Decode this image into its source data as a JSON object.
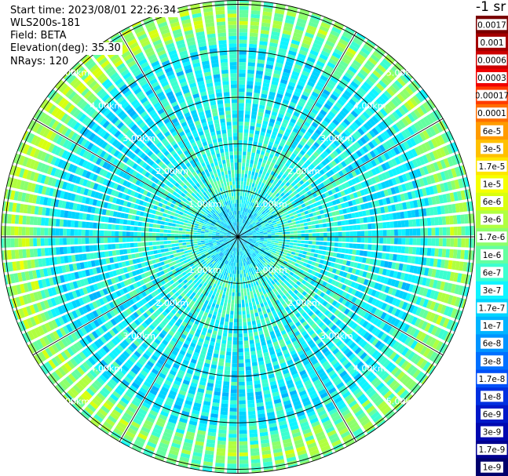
{
  "header": {
    "start_time": "Start time: 2023/08/01 22:26:34",
    "instrument": "WLS200s-181",
    "field": "Field: BETA",
    "elevation": "Elevation(deg): 35.30",
    "nrays": "NRays: 120"
  },
  "colorbar": {
    "title": "-1 sr",
    "labels": [
      "0.0017",
      "0.001",
      "0.0006",
      "0.0003",
      "0.00017",
      "0.0001",
      "6e-5",
      "3e-5",
      "1.7e-5",
      "1e-5",
      "6e-6",
      "3e-6",
      "1.7e-6",
      "1e-6",
      "6e-7",
      "3e-7",
      "1.7e-7",
      "1e-7",
      "6e-8",
      "3e-8",
      "1.7e-8",
      "1e-8",
      "6e-9",
      "3e-9",
      "1.7e-9",
      "1e-9"
    ],
    "colors": [
      "#7a0000",
      "#a40000",
      "#cc0000",
      "#f00000",
      "#ff3b00",
      "#ff6e00",
      "#ff9b00",
      "#ffc000",
      "#ffe600",
      "#f6ff00",
      "#d8ff10",
      "#b0ff40",
      "#8cff6c",
      "#64ffa0",
      "#3cffd0",
      "#10f4ff",
      "#00d4ff",
      "#00b4ff",
      "#0094ff",
      "#0070ff",
      "#0050f8",
      "#0030e0",
      "#0018c8",
      "#0008b0",
      "#000090",
      "#00006c"
    ]
  },
  "chart_data": {
    "type": "heatmap",
    "projection": "polar-ppi",
    "field": "BETA",
    "units": "-1 sr",
    "nrays": 120,
    "elevation_deg": 35.3,
    "range_rings_km": [
      1,
      2,
      3,
      4,
      5
    ],
    "ring_labels": [
      "1.00km",
      "2.00km",
      "3.00km",
      "4.00km",
      "5.00km"
    ],
    "spoke_angles_deg": [
      0,
      30,
      60,
      90,
      120,
      150,
      180,
      210,
      240,
      270,
      300,
      330
    ],
    "max_range_km": 5.2,
    "approx_profile": [
      {
        "range_km": 0.5,
        "beta": 2e-07
      },
      {
        "range_km": 1.0,
        "beta": 5e-07
      },
      {
        "range_km": 2.0,
        "beta": 4e-07
      },
      {
        "range_km": 3.0,
        "beta": 3e-07
      },
      {
        "range_km": 4.0,
        "beta": 3e-07
      },
      {
        "range_km": 4.7,
        "beta": 2e-06
      },
      {
        "range_km": 5.0,
        "beta": 1e-06
      }
    ]
  }
}
